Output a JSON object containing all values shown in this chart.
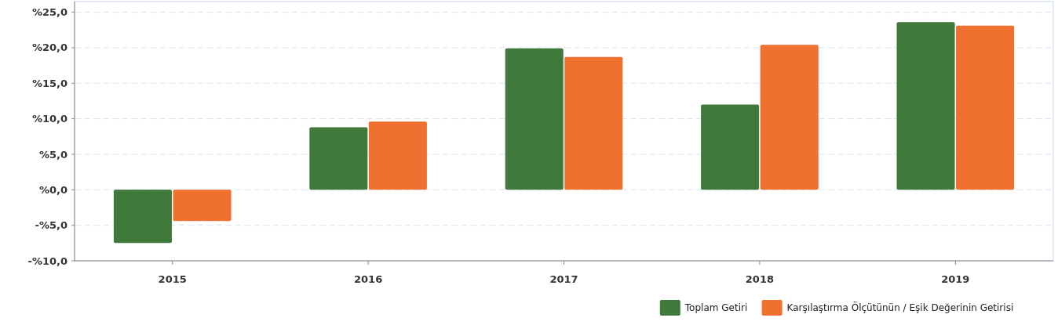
{
  "chart_data": {
    "type": "bar",
    "categories": [
      "2015",
      "2016",
      "2017",
      "2018",
      "2019"
    ],
    "series": [
      {
        "name": "Toplam Getiri",
        "color": "#3f7a3a",
        "values": [
          -7.5,
          8.8,
          19.9,
          12.0,
          23.6
        ]
      },
      {
        "name": "Karşılaştırma Ölçütünün / Eşik Değerinin Getirisi",
        "color": "#f07030",
        "values": [
          -4.4,
          9.6,
          18.7,
          20.4,
          23.1
        ]
      }
    ],
    "ylim": [
      -10,
      26.5
    ],
    "yticks": [
      {
        "value": -10,
        "label": "-%10,0"
      },
      {
        "value": -5,
        "label": "-%5,0"
      },
      {
        "value": 0,
        "label": "%0,0"
      },
      {
        "value": 5,
        "label": "%5,0"
      },
      {
        "value": 10,
        "label": "%10,0"
      },
      {
        "value": 15,
        "label": "%15,0"
      },
      {
        "value": 20,
        "label": "%20,0"
      },
      {
        "value": 25,
        "label": "%25,0"
      }
    ],
    "grid": "y",
    "legend": "bottom right"
  }
}
